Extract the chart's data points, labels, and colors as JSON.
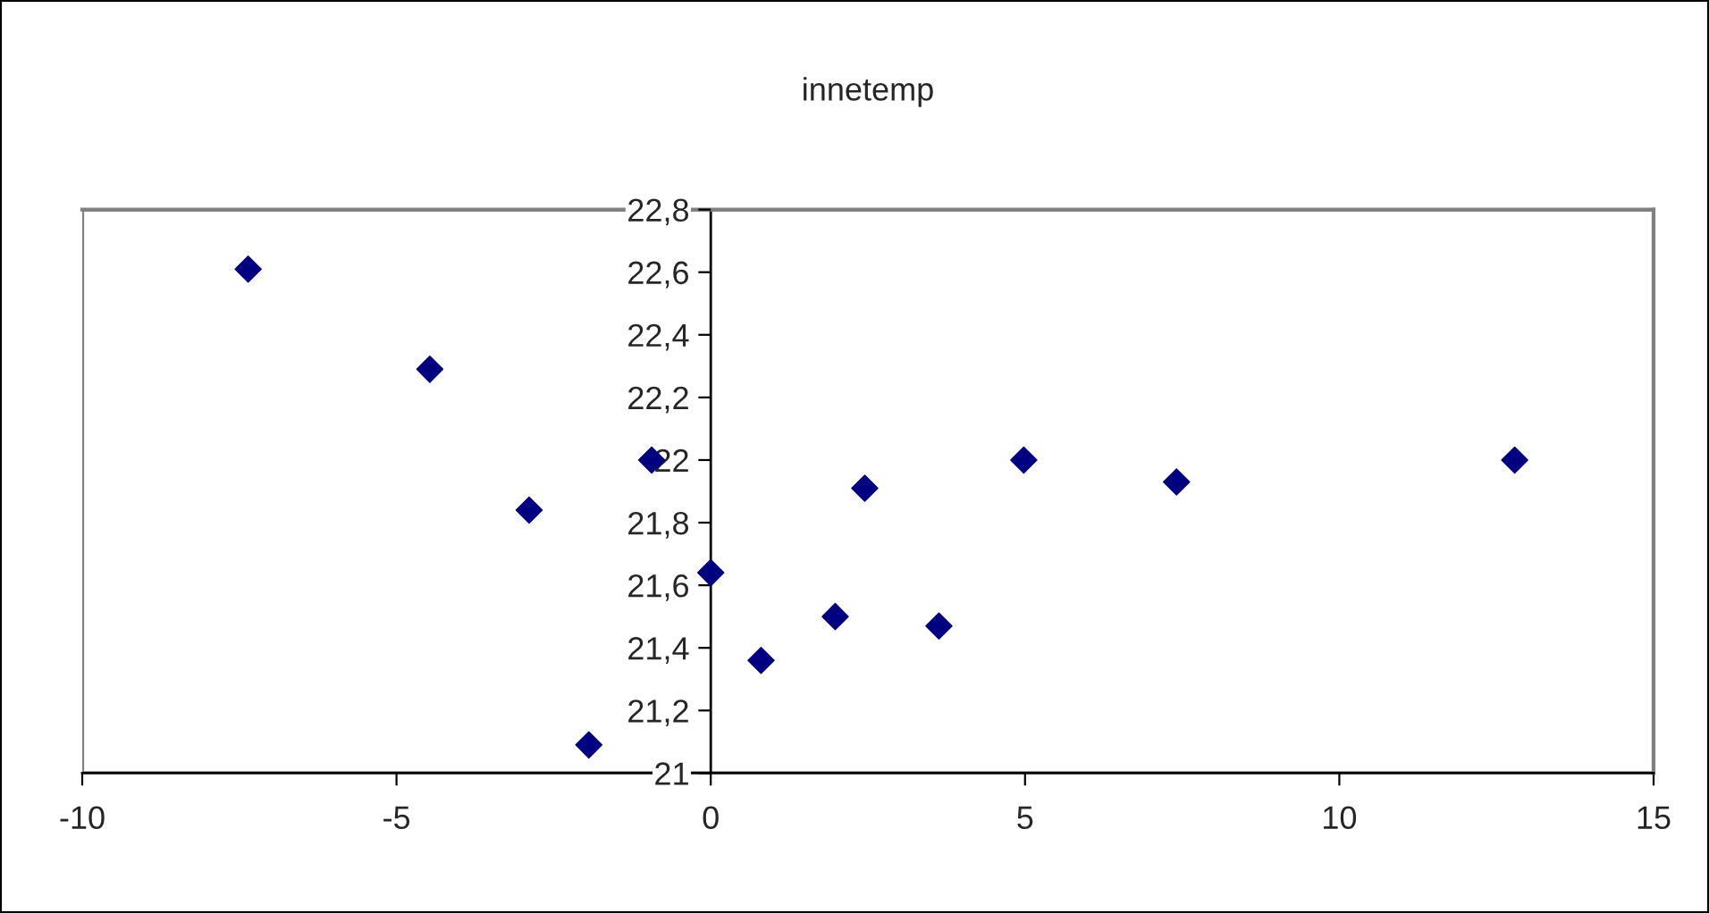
{
  "chart_data": {
    "type": "scatter",
    "title": "innetemp",
    "x": [
      -7.36,
      -4.47,
      -2.89,
      -0.94,
      -1.94,
      0,
      0.8,
      1.98,
      3.63,
      2.45,
      4.98,
      7.41,
      12.79
    ],
    "values": [
      22.61,
      22.29,
      21.84,
      22.0,
      21.09,
      21.64,
      21.36,
      21.5,
      21.47,
      21.91,
      22.0,
      21.93,
      22.0
    ],
    "color": "#000080",
    "marker": "diamond",
    "grid": false,
    "xlim": [
      -10,
      15
    ],
    "xticks": [
      -10,
      -5,
      0,
      5,
      10,
      15
    ],
    "ylim": [
      21,
      22.8
    ],
    "yticks": [
      {
        "value": 21,
        "label": "21"
      },
      {
        "value": 21.2,
        "label": "21,2"
      },
      {
        "value": 21.4,
        "label": "21,4"
      },
      {
        "value": 21.6,
        "label": "21,6"
      },
      {
        "value": 21.8,
        "label": "21,8"
      },
      {
        "value": 22,
        "label": "22"
      },
      {
        "value": 22.2,
        "label": "22,2"
      },
      {
        "value": 22.4,
        "label": "22,4"
      },
      {
        "value": 22.6,
        "label": "22,6"
      },
      {
        "value": 22.8,
        "label": "22,8"
      }
    ]
  }
}
